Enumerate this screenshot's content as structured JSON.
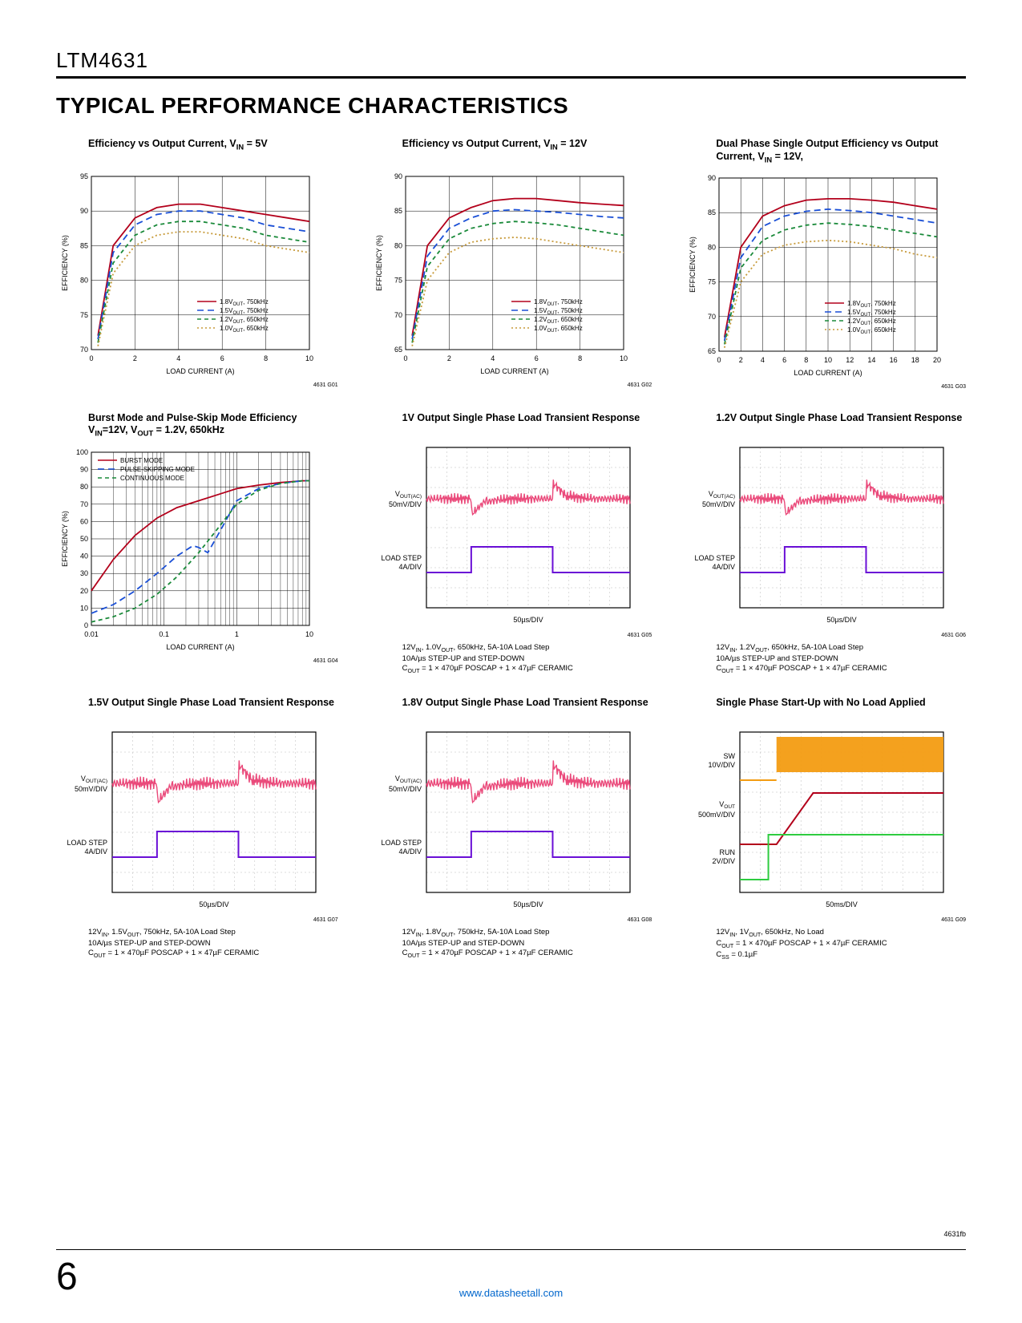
{
  "header": {
    "part": "LTM4631"
  },
  "section_title": "TYPICAL PERFORMANCE CHARACTERISTICS",
  "footer": {
    "page": "6",
    "link": "www.datasheetall.com",
    "rev": "4631fb"
  },
  "colors": {
    "c18": "#b3001b",
    "c15": "#1a4fd6",
    "c12": "#1a8a3a",
    "c10": "#c79a3a",
    "burst": "#b3001b",
    "pskip": "#1a4fd6",
    "cont": "#1a8a3a",
    "scope_grid": "#888",
    "scope_border": "#000",
    "vout_trace": "#e8356b",
    "load_trace": "#6a0fd6",
    "sw_trace": "#f39c12",
    "run_trace": "#2ecc40"
  },
  "charts": [
    {
      "id": "4631 G01",
      "kind": "eff",
      "title": "Efficiency vs Output Current, V<sub>IN</sub> = 5V",
      "xlabel": "LOAD CURRENT (A)",
      "ylabel": "EFFICIENCY (%)",
      "xlim": [
        0,
        10
      ],
      "xticks": [
        0,
        2,
        4,
        6,
        8,
        10
      ],
      "ylim": [
        70,
        95
      ],
      "yticks": [
        70,
        75,
        80,
        85,
        90,
        95
      ],
      "legend_pos": "bottom-right",
      "series": [
        {
          "label": "1.8V_OUT, 750kHz",
          "color": "#b3001b",
          "dash": "",
          "pts": [
            [
              0.3,
              72
            ],
            [
              1,
              85
            ],
            [
              2,
              89
            ],
            [
              3,
              90.5
            ],
            [
              4,
              91
            ],
            [
              5,
              91
            ],
            [
              6,
              90.5
            ],
            [
              7,
              90
            ],
            [
              8,
              89.5
            ],
            [
              9,
              89
            ],
            [
              10,
              88.5
            ]
          ]
        },
        {
          "label": "1.5V_OUT, 750kHz",
          "color": "#1a4fd6",
          "dash": "8,5",
          "pts": [
            [
              0.3,
              71.5
            ],
            [
              1,
              84
            ],
            [
              2,
              88
            ],
            [
              3,
              89.5
            ],
            [
              4,
              90
            ],
            [
              5,
              90
            ],
            [
              6,
              89.5
            ],
            [
              7,
              89
            ],
            [
              8,
              88
            ],
            [
              9,
              87.5
            ],
            [
              10,
              87
            ]
          ]
        },
        {
          "label": "1.2V_OUT, 650kHz",
          "color": "#1a8a3a",
          "dash": "5,4",
          "pts": [
            [
              0.3,
              71
            ],
            [
              1,
              82.5
            ],
            [
              2,
              86.5
            ],
            [
              3,
              88
            ],
            [
              4,
              88.5
            ],
            [
              5,
              88.5
            ],
            [
              6,
              88
            ],
            [
              7,
              87.5
            ],
            [
              8,
              86.5
            ],
            [
              9,
              86
            ],
            [
              10,
              85.5
            ]
          ]
        },
        {
          "label": "1.0V_OUT, 650kHz",
          "color": "#c79a3a",
          "dash": "2,3",
          "pts": [
            [
              0.3,
              70.5
            ],
            [
              1,
              81
            ],
            [
              2,
              85
            ],
            [
              3,
              86.5
            ],
            [
              4,
              87
            ],
            [
              5,
              87
            ],
            [
              6,
              86.5
            ],
            [
              7,
              86
            ],
            [
              8,
              85
            ],
            [
              9,
              84.5
            ],
            [
              10,
              84
            ]
          ]
        }
      ]
    },
    {
      "id": "4631 G02",
      "kind": "eff",
      "title": "Efficiency vs Output Current, V<sub>IN</sub> = 12V",
      "xlabel": "LOAD CURRENT (A)",
      "ylabel": "EFFICIENCY (%)",
      "xlim": [
        0,
        10
      ],
      "xticks": [
        0,
        2,
        4,
        6,
        8,
        10
      ],
      "ylim": [
        65,
        90
      ],
      "yticks": [
        65,
        70,
        75,
        80,
        85,
        90
      ],
      "legend_pos": "bottom-right",
      "series": [
        {
          "label": "1.8V_OUT, 750kHz",
          "color": "#b3001b",
          "dash": "",
          "pts": [
            [
              0.3,
              67
            ],
            [
              1,
              80
            ],
            [
              2,
              84
            ],
            [
              3,
              85.5
            ],
            [
              4,
              86.5
            ],
            [
              5,
              86.8
            ],
            [
              6,
              86.8
            ],
            [
              7,
              86.5
            ],
            [
              8,
              86.2
            ],
            [
              9,
              86
            ],
            [
              10,
              85.8
            ]
          ]
        },
        {
          "label": "1.5V_OUT, 750kHz",
          "color": "#1a4fd6",
          "dash": "8,5",
          "pts": [
            [
              0.3,
              66.5
            ],
            [
              1,
              78.5
            ],
            [
              2,
              82.5
            ],
            [
              3,
              84
            ],
            [
              4,
              85
            ],
            [
              5,
              85.2
            ],
            [
              6,
              85
            ],
            [
              7,
              84.8
            ],
            [
              8,
              84.5
            ],
            [
              9,
              84.2
            ],
            [
              10,
              84
            ]
          ]
        },
        {
          "label": "1.2V_OUT, 650kHz",
          "color": "#1a8a3a",
          "dash": "5,4",
          "pts": [
            [
              0.3,
              66
            ],
            [
              1,
              77
            ],
            [
              2,
              81
            ],
            [
              3,
              82.5
            ],
            [
              4,
              83.2
            ],
            [
              5,
              83.5
            ],
            [
              6,
              83.3
            ],
            [
              7,
              83
            ],
            [
              8,
              82.5
            ],
            [
              9,
              82
            ],
            [
              10,
              81.5
            ]
          ]
        },
        {
          "label": "1.0V_OUT, 650kHz",
          "color": "#c79a3a",
          "dash": "2,3",
          "pts": [
            [
              0.3,
              65.5
            ],
            [
              1,
              75
            ],
            [
              2,
              79
            ],
            [
              3,
              80.5
            ],
            [
              4,
              81
            ],
            [
              5,
              81.2
            ],
            [
              6,
              81
            ],
            [
              7,
              80.5
            ],
            [
              8,
              80
            ],
            [
              9,
              79.5
            ],
            [
              10,
              79
            ]
          ]
        }
      ]
    },
    {
      "id": "4631 G03",
      "kind": "eff",
      "title": "Dual Phase Single Output Efficiency vs Output Current, V<sub>IN</sub> = 12V,",
      "xlabel": "LOAD CURRENT (A)",
      "ylabel": "EFFICIENCY (%)",
      "xlim": [
        0,
        20
      ],
      "xticks": [
        0,
        2,
        4,
        6,
        8,
        10,
        12,
        14,
        16,
        18,
        20
      ],
      "ylim": [
        65,
        90
      ],
      "yticks": [
        65,
        70,
        75,
        80,
        85,
        90
      ],
      "legend_pos": "bottom-right",
      "series": [
        {
          "label": "1.8V_OUT, 750kHz",
          "color": "#b3001b",
          "dash": "",
          "pts": [
            [
              0.5,
              67
            ],
            [
              2,
              80
            ],
            [
              4,
              84.5
            ],
            [
              6,
              86
            ],
            [
              8,
              86.8
            ],
            [
              10,
              87
            ],
            [
              12,
              87
            ],
            [
              14,
              86.8
            ],
            [
              16,
              86.5
            ],
            [
              18,
              86
            ],
            [
              20,
              85.5
            ]
          ]
        },
        {
          "label": "1.5V_OUT, 750kHz",
          "color": "#1a4fd6",
          "dash": "8,5",
          "pts": [
            [
              0.5,
              66.5
            ],
            [
              2,
              78.5
            ],
            [
              4,
              83
            ],
            [
              6,
              84.5
            ],
            [
              8,
              85.2
            ],
            [
              10,
              85.5
            ],
            [
              12,
              85.3
            ],
            [
              14,
              85
            ],
            [
              16,
              84.5
            ],
            [
              18,
              84
            ],
            [
              20,
              83.5
            ]
          ]
        },
        {
          "label": "1.2V_OUT, 650kHz",
          "color": "#1a8a3a",
          "dash": "5,4",
          "pts": [
            [
              0.5,
              66
            ],
            [
              2,
              77
            ],
            [
              4,
              81
            ],
            [
              6,
              82.5
            ],
            [
              8,
              83.2
            ],
            [
              10,
              83.5
            ],
            [
              12,
              83.3
            ],
            [
              14,
              83
            ],
            [
              16,
              82.5
            ],
            [
              18,
              82
            ],
            [
              20,
              81.5
            ]
          ]
        },
        {
          "label": "1.0V_OUT, 650kHz",
          "color": "#c79a3a",
          "dash": "2,3",
          "pts": [
            [
              0.5,
              65.5
            ],
            [
              2,
              75
            ],
            [
              4,
              79
            ],
            [
              6,
              80.3
            ],
            [
              8,
              80.8
            ],
            [
              10,
              81
            ],
            [
              12,
              80.8
            ],
            [
              14,
              80.3
            ],
            [
              16,
              79.8
            ],
            [
              18,
              79
            ],
            [
              20,
              78.5
            ]
          ]
        }
      ]
    },
    {
      "id": "4631 G04",
      "kind": "eff-log",
      "title": "Burst Mode and Pulse-Skip Mode Efficiency V<sub>IN</sub>=12V, V<sub>OUT</sub> = 1.2V, 650kHz",
      "xlabel": "LOAD CURRENT (A)",
      "ylabel": "EFFICIENCY (%)",
      "xlim": [
        0.01,
        10
      ],
      "xticks_log": [
        0.01,
        0.1,
        1,
        10
      ],
      "xtick_labels": [
        "0.01",
        "0.1",
        "1",
        "10"
      ],
      "ylim": [
        0,
        100
      ],
      "yticks": [
        0,
        10,
        20,
        30,
        40,
        50,
        60,
        70,
        80,
        90,
        100
      ],
      "legend_pos": "top-left",
      "series": [
        {
          "label": "BURST MODE",
          "color": "#b3001b",
          "dash": "",
          "pts": [
            [
              0.01,
              20
            ],
            [
              0.02,
              38
            ],
            [
              0.04,
              52
            ],
            [
              0.08,
              62
            ],
            [
              0.15,
              68
            ],
            [
              0.3,
              72
            ],
            [
              0.6,
              76
            ],
            [
              1,
              79
            ],
            [
              2,
              81
            ],
            [
              4,
              82.5
            ],
            [
              8,
              83.5
            ],
            [
              10,
              83.5
            ]
          ]
        },
        {
          "label": "PULSE-SKIPPING MODE",
          "color": "#1a4fd6",
          "dash": "8,5",
          "pts": [
            [
              0.01,
              7
            ],
            [
              0.02,
              12
            ],
            [
              0.04,
              20
            ],
            [
              0.08,
              30
            ],
            [
              0.15,
              40
            ],
            [
              0.25,
              46
            ],
            [
              0.3,
              45
            ],
            [
              0.4,
              42
            ],
            [
              0.6,
              55
            ],
            [
              1,
              72
            ],
            [
              2,
              79
            ],
            [
              4,
              82
            ],
            [
              8,
              83.5
            ],
            [
              10,
              83.5
            ]
          ]
        },
        {
          "label": "CONTINUOUS MODE",
          "color": "#1a8a3a",
          "dash": "5,4",
          "pts": [
            [
              0.01,
              2
            ],
            [
              0.02,
              5
            ],
            [
              0.04,
              10
            ],
            [
              0.08,
              18
            ],
            [
              0.15,
              28
            ],
            [
              0.3,
              42
            ],
            [
              0.6,
              58
            ],
            [
              1,
              70
            ],
            [
              2,
              78
            ],
            [
              4,
              82
            ],
            [
              8,
              83.5
            ],
            [
              10,
              83.5
            ]
          ]
        }
      ]
    },
    {
      "id": "4631 G05",
      "kind": "scope-trans",
      "title": "1V Output Single Phase Load Transient Response",
      "xlabel": "50µs/DIV",
      "traces": [
        {
          "label": "V_OUT(AC) 50mV/DIV",
          "color": "#e8356b",
          "y": 0.32,
          "amp": 0.05,
          "transient": true
        },
        {
          "label": "LOAD STEP 4A/DIV",
          "color": "#6a0fd6",
          "y": 0.72,
          "step": true
        }
      ],
      "caption": "12V<sub>IN</sub>, 1.0V<sub>OUT</sub>, 650kHz, 5A-10A Load Step<br>10A/µs STEP-UP and STEP-DOWN<br>C<sub>OUT</sub> = 1 × 470µF POSCAP + 1 × 47µF CERAMIC"
    },
    {
      "id": "4631 G06",
      "kind": "scope-trans",
      "title": "1.2V Output Single Phase Load Transient Response",
      "xlabel": "50µs/DIV",
      "traces": [
        {
          "label": "V_OUT(AC) 50mV/DIV",
          "color": "#e8356b",
          "y": 0.32,
          "amp": 0.05,
          "transient": true
        },
        {
          "label": "LOAD STEP 4A/DIV",
          "color": "#6a0fd6",
          "y": 0.72,
          "step": true
        }
      ],
      "caption": "12V<sub>IN</sub>, 1.2V<sub>OUT</sub>, 650kHz, 5A-10A Load Step<br>10A/µs STEP-UP and STEP-DOWN<br>C<sub>OUT</sub> = 1 × 470µF POSCAP + 1 × 47µF CERAMIC"
    },
    {
      "id": "4631 G07",
      "kind": "scope-trans",
      "title": "1.5V Output Single Phase Load Transient Response",
      "xlabel": "50µs/DIV",
      "traces": [
        {
          "label": "V_OUT(AC) 50mV/DIV",
          "color": "#e8356b",
          "y": 0.32,
          "amp": 0.06,
          "transient": true
        },
        {
          "label": "LOAD STEP 4A/DIV",
          "color": "#6a0fd6",
          "y": 0.72,
          "step": true
        }
      ],
      "caption": "12V<sub>IN</sub>, 1.5V<sub>OUT</sub>, 750kHz, 5A-10A Load Step<br>10A/µs STEP-UP and STEP-DOWN<br>C<sub>OUT</sub> = 1 × 470µF POSCAP + 1 × 47µF CERAMIC"
    },
    {
      "id": "4631 G08",
      "kind": "scope-trans",
      "title": "1.8V Output Single Phase Load Transient Response",
      "xlabel": "50µs/DIV",
      "traces": [
        {
          "label": "V_OUT(AC) 50mV/DIV",
          "color": "#e8356b",
          "y": 0.32,
          "amp": 0.06,
          "transient": true
        },
        {
          "label": "LOAD STEP 4A/DIV",
          "color": "#6a0fd6",
          "y": 0.72,
          "step": true
        }
      ],
      "caption": "12V<sub>IN</sub>, 1.8V<sub>OUT</sub>, 750kHz, 5A-10A Load Step<br>10A/µs STEP-UP and STEP-DOWN<br>C<sub>OUT</sub> = 1 × 470µF POSCAP + 1 × 47µF CERAMIC"
    },
    {
      "id": "4631 G09",
      "kind": "scope-startup",
      "title": "Single Phase Start-Up with No Load Applied",
      "xlabel": "50ms/DIV",
      "traces": [
        {
          "label": "SW 10V/DIV",
          "color": "#f39c12",
          "y": 0.18,
          "sw": true
        },
        {
          "label": "V_OUT 500mV/DIV",
          "color": "#b3001b",
          "y": 0.48,
          "ramp": true
        },
        {
          "label": "RUN 2V/DIV",
          "color": "#2ecc40",
          "y": 0.78,
          "run": true
        }
      ],
      "caption": "12V<sub>IN</sub>, 1V<sub>OUT</sub>, 650kHz, No Load<br>C<sub>OUT</sub> = 1 × 470µF POSCAP + 1 × 47µF CERAMIC<br>C<sub>SS</sub> = 0.1µF"
    }
  ]
}
